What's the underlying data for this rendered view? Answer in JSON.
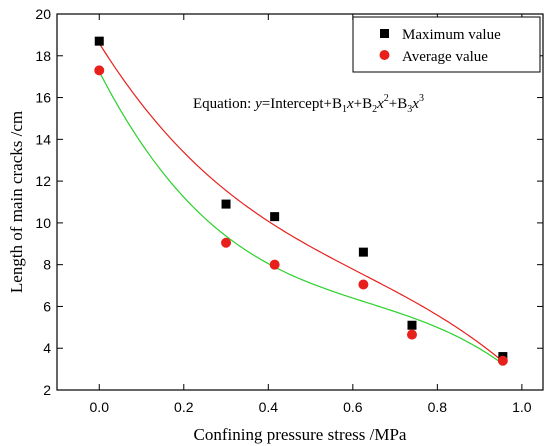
{
  "chart_data": {
    "type": "scatter",
    "xlabel": "Confining pressure stress /MPa",
    "ylabel": "Length of main cracks /cm",
    "xlim": [
      -0.1,
      1.05
    ],
    "ylim": [
      2,
      20
    ],
    "xticks": [
      "0.0",
      "0.2",
      "0.4",
      "0.6",
      "0.8",
      "1.0"
    ],
    "yticks": [
      "2",
      "4",
      "6",
      "8",
      "10",
      "12",
      "14",
      "16",
      "18",
      "20"
    ],
    "grid": false,
    "legend_position": "top-right",
    "series": [
      {
        "name": "Maximum value",
        "marker": "square",
        "color": "#000000",
        "fit_color": "#e8201c",
        "x": [
          0.0,
          0.3,
          0.415,
          0.625,
          0.74,
          0.955
        ],
        "y": [
          18.7,
          10.9,
          10.3,
          8.6,
          5.1,
          3.6
        ]
      },
      {
        "name": "Average value",
        "marker": "circle",
        "color": "#e8201c",
        "fit_color": "#2bd12b",
        "x": [
          0.0,
          0.3,
          0.415,
          0.625,
          0.74,
          0.955
        ],
        "y": [
          17.3,
          9.05,
          8.0,
          7.05,
          4.65,
          3.4
        ]
      }
    ],
    "annotation": {
      "prefix": "Equation: ",
      "var_y": "y",
      "eq_mid": "=Intercept+B",
      "sub1": "1",
      "var_x": "x",
      "plus_b": "+B",
      "sub2": "2",
      "sup2": "2",
      "sub3": "3",
      "sup3": "3"
    }
  }
}
